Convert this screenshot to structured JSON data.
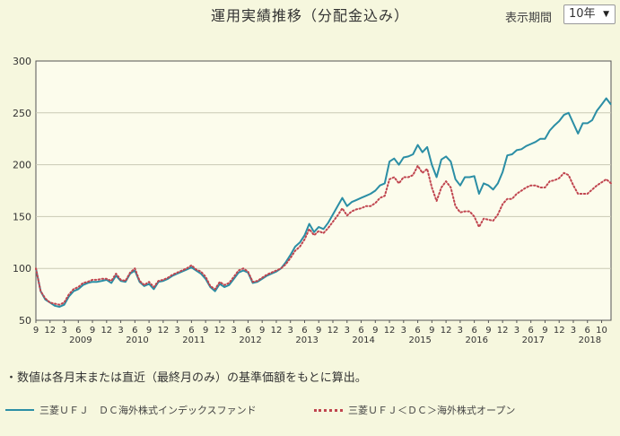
{
  "title": "運用実績推移（分配金込み）",
  "period": {
    "label": "表示期間",
    "selected": "10年",
    "arrow_icon": "triangle-down"
  },
  "note": "・数値は各月末または直近（最終月のみ）の基準価額をもとに算出。",
  "chart_data": {
    "type": "line",
    "ylim": [
      50,
      300
    ],
    "yticks": [
      50,
      100,
      150,
      200,
      250,
      300
    ],
    "grid": true,
    "x_tick_labels": [
      "9",
      "12",
      "3",
      "6",
      "9",
      "12",
      "3",
      "6",
      "9",
      "12",
      "3",
      "6",
      "9",
      "12",
      "3",
      "6",
      "9",
      "12",
      "3",
      "6",
      "9",
      "12",
      "3",
      "6",
      "9",
      "12",
      "3",
      "6",
      "9",
      "12",
      "3",
      "6",
      "9",
      "12",
      "3",
      "6",
      "9",
      "12",
      "3",
      "6",
      "10"
    ],
    "year_labels": [
      "2009",
      "2010",
      "2011",
      "2012",
      "2013",
      "2014",
      "2015",
      "2016",
      "2017",
      "2018"
    ],
    "x_start": "2008-09",
    "legend_position": "bottom",
    "series": [
      {
        "name": "三菱ＵＦＪ　ＤＣ海外株式インデックスファンド",
        "color": "#2b8ea5",
        "style": "solid",
        "values": [
          100,
          78,
          70,
          67,
          64,
          63,
          65,
          73,
          78,
          80,
          84,
          86,
          87,
          87,
          88,
          89,
          86,
          93,
          88,
          87,
          95,
          98,
          87,
          83,
          85,
          80,
          87,
          88,
          90,
          93,
          95,
          97,
          99,
          101,
          98,
          95,
          90,
          82,
          78,
          85,
          82,
          84,
          90,
          96,
          98,
          96,
          86,
          87,
          90,
          93,
          95,
          97,
          100,
          106,
          113,
          121,
          125,
          132,
          143,
          135,
          140,
          138,
          144,
          152,
          160,
          168,
          160,
          164,
          166,
          168,
          170,
          172,
          175,
          180,
          182,
          203,
          206,
          200,
          207,
          208,
          210,
          219,
          212,
          217,
          200,
          188,
          205,
          208,
          203,
          186,
          180,
          188,
          188,
          189,
          172,
          182,
          180,
          176,
          182,
          193,
          209,
          210,
          214,
          215,
          218,
          220,
          222,
          225,
          225,
          233,
          238,
          242,
          248,
          250,
          240,
          230,
          240,
          240,
          243,
          252,
          258,
          264,
          258
        ]
      },
      {
        "name": "三菱ＵＦＪ＜ＤＣ＞海外株式オープン",
        "color": "#c0454f",
        "style": "dotted",
        "values": [
          100,
          78,
          71,
          67,
          66,
          65,
          67,
          75,
          80,
          82,
          86,
          87,
          89,
          89,
          90,
          90,
          88,
          95,
          89,
          88,
          96,
          100,
          88,
          84,
          87,
          82,
          88,
          89,
          91,
          94,
          96,
          98,
          100,
          103,
          99,
          97,
          92,
          83,
          80,
          87,
          84,
          86,
          92,
          98,
          100,
          97,
          87,
          88,
          91,
          94,
          96,
          98,
          100,
          104,
          110,
          117,
          121,
          128,
          138,
          132,
          136,
          134,
          139,
          145,
          151,
          158,
          151,
          155,
          157,
          158,
          160,
          160,
          163,
          168,
          170,
          186,
          188,
          182,
          188,
          188,
          190,
          199,
          192,
          196,
          178,
          165,
          178,
          184,
          178,
          160,
          154,
          155,
          155,
          150,
          140,
          148,
          147,
          146,
          152,
          162,
          167,
          167,
          172,
          175,
          178,
          180,
          180,
          178,
          178,
          184,
          185,
          187,
          192,
          190,
          180,
          172,
          172,
          172,
          176,
          180,
          183,
          186,
          182
        ]
      }
    ]
  }
}
